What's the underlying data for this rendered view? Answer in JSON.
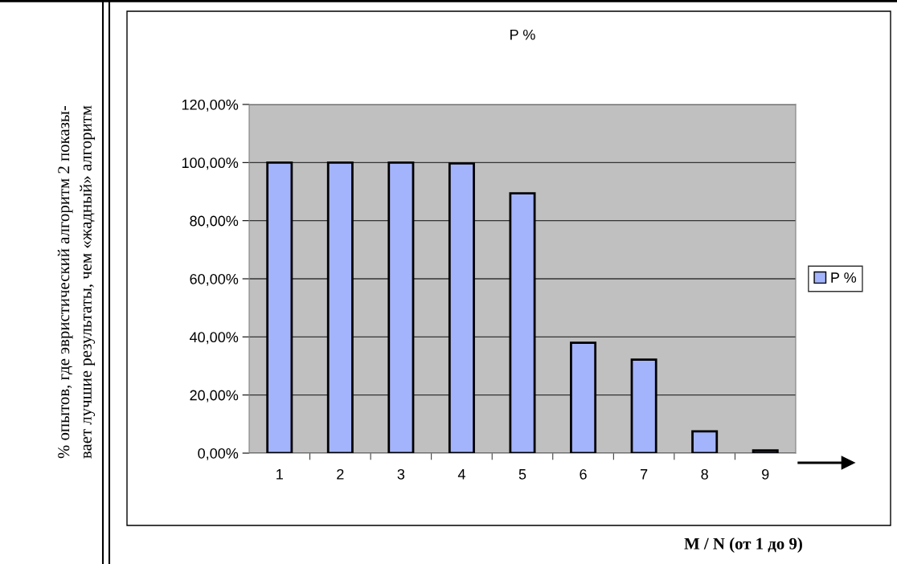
{
  "chart_data": {
    "type": "bar",
    "title": "P %",
    "annotations": [
      "% опытов, где эвристический алгоритм 2 показы-\nвает лучшие результаты, чем «жадный» алгоритм"
    ],
    "xlabel": "M / N (от 1 до 9)",
    "categories": [
      "1",
      "2",
      "3",
      "4",
      "5",
      "6",
      "7",
      "8",
      "9"
    ],
    "series": [
      {
        "name": "P %",
        "color": "#a4b4fc",
        "values": [
          100,
          100,
          100,
          99.7,
          89.4,
          38,
          32.2,
          7.5,
          0.9
        ]
      }
    ],
    "ylim": [
      0,
      120
    ],
    "yticks": [
      {
        "value": 0,
        "label": "0,00%"
      },
      {
        "value": 20,
        "label": "20,00%"
      },
      {
        "value": 40,
        "label": "40,00%"
      },
      {
        "value": 60,
        "label": "60,00%"
      },
      {
        "value": 80,
        "label": "80,00%"
      },
      {
        "value": 100,
        "label": "100,00%"
      },
      {
        "value": 120,
        "label": "120,00%"
      }
    ],
    "grid": "y",
    "legend": "right"
  }
}
